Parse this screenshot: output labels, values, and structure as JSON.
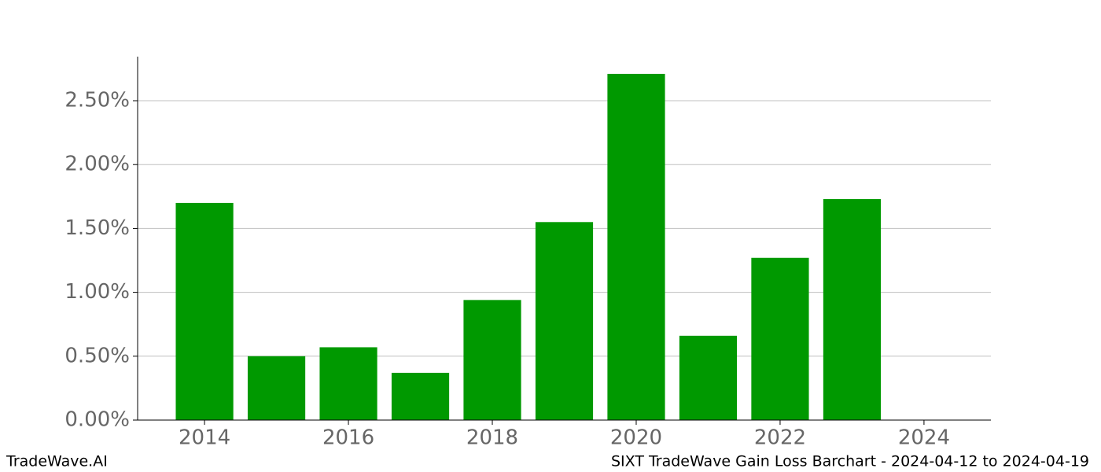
{
  "chart_data": {
    "type": "bar",
    "title": "SIXT TradeWave Gain Loss Barchart - 2024-04-12 to 2024-04-19",
    "source": "TradeWave.AI",
    "x": [
      2014,
      2015,
      2016,
      2017,
      2018,
      2019,
      2020,
      2021,
      2022,
      2023
    ],
    "values": [
      1.7,
      0.5,
      0.57,
      0.37,
      0.94,
      1.55,
      2.71,
      0.66,
      1.27,
      1.73
    ],
    "color": "#009900",
    "xlim": [
      2013.07,
      2024.93
    ],
    "xticks": [
      2014,
      2016,
      2018,
      2020,
      2022,
      2024
    ],
    "ylim": [
      0,
      2.845
    ],
    "yticks": [
      {
        "value": 0,
        "label": "0.00%"
      },
      {
        "value": 0.5,
        "label": "0.50%"
      },
      {
        "value": 1,
        "label": "1.00%"
      },
      {
        "value": 1.5,
        "label": "1.50%"
      },
      {
        "value": 2,
        "label": "2.00%"
      },
      {
        "value": 2.5,
        "label": "2.50%"
      }
    ],
    "grid": true
  }
}
